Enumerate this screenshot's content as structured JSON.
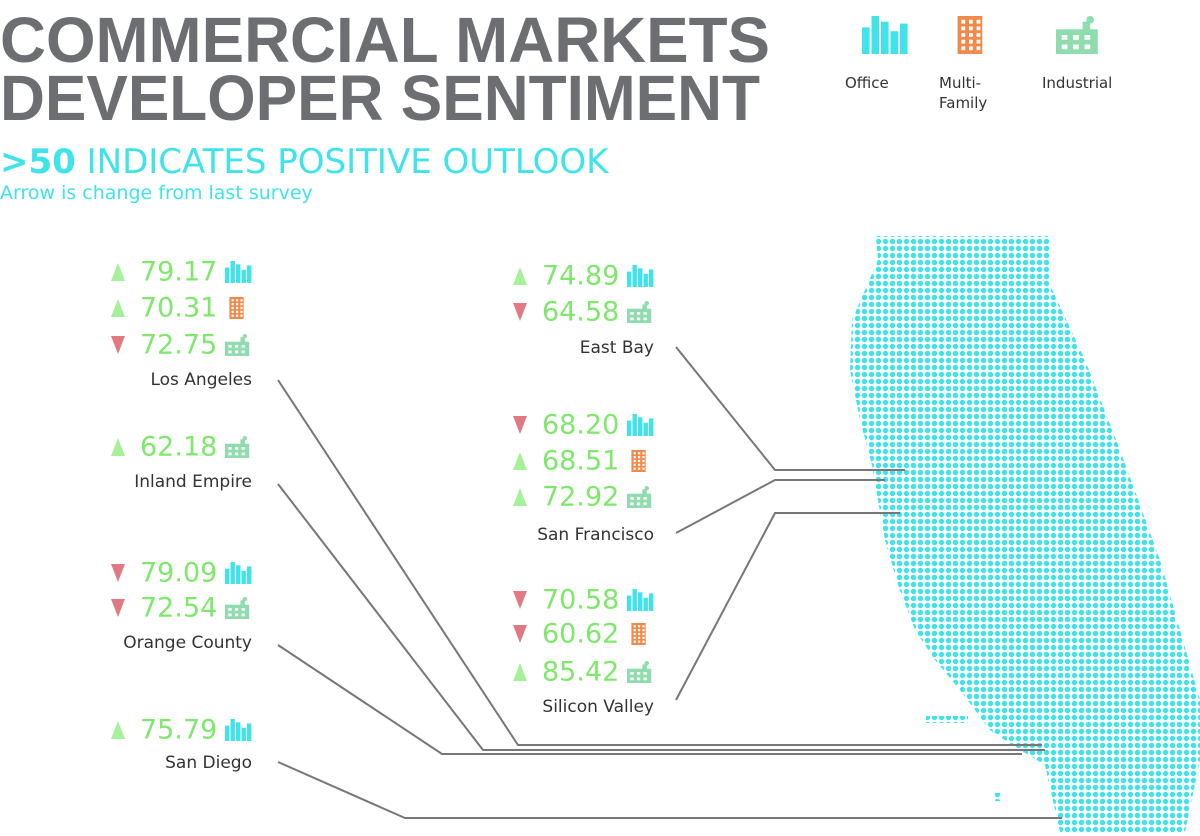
{
  "header": {
    "title_lines": [
      "COMMERCIAL MARKETS",
      "DEVELOPER SENTIMENT"
    ],
    "subtitle_strong": ">50",
    "subtitle": "INDICATES POSITIVE OUTLOOK",
    "note": "Arrow is change from last survey"
  },
  "legend": [
    {
      "type": "office",
      "label_lines": [
        "Office"
      ]
    },
    {
      "type": "multifamily",
      "label_lines": [
        "Multi-",
        "Family"
      ]
    },
    {
      "type": "industrial",
      "label_lines": [
        "Industrial"
      ]
    }
  ],
  "regions": [
    {
      "name": "Los Angeles",
      "entries": [
        {
          "type": "office",
          "direction": "up",
          "value": "79.17"
        },
        {
          "type": "multifamily",
          "direction": "up",
          "value": "70.31"
        },
        {
          "type": "industrial",
          "direction": "down",
          "value": "72.75"
        }
      ]
    },
    {
      "name": "Inland Empire",
      "entries": [
        {
          "type": "industrial",
          "direction": "up",
          "value": "62.18"
        }
      ]
    },
    {
      "name": "Orange County",
      "entries": [
        {
          "type": "office",
          "direction": "down",
          "value": "79.09"
        },
        {
          "type": "industrial",
          "direction": "down",
          "value": "72.54"
        }
      ]
    },
    {
      "name": "San Diego",
      "entries": [
        {
          "type": "office",
          "direction": "up",
          "value": "75.79"
        }
      ]
    },
    {
      "name": "East Bay",
      "entries": [
        {
          "type": "office",
          "direction": "up",
          "value": "74.89"
        },
        {
          "type": "industrial",
          "direction": "down",
          "value": "64.58"
        }
      ]
    },
    {
      "name": "San Francisco",
      "entries": [
        {
          "type": "office",
          "direction": "down",
          "value": "68.20"
        },
        {
          "type": "multifamily",
          "direction": "up",
          "value": "68.51"
        },
        {
          "type": "industrial",
          "direction": "up",
          "value": "72.92"
        }
      ]
    },
    {
      "name": "Silicon Valley",
      "entries": [
        {
          "type": "office",
          "direction": "down",
          "value": "70.58"
        },
        {
          "type": "multifamily",
          "direction": "down",
          "value": "60.62"
        },
        {
          "type": "industrial",
          "direction": "up",
          "value": "85.42"
        }
      ]
    }
  ]
}
